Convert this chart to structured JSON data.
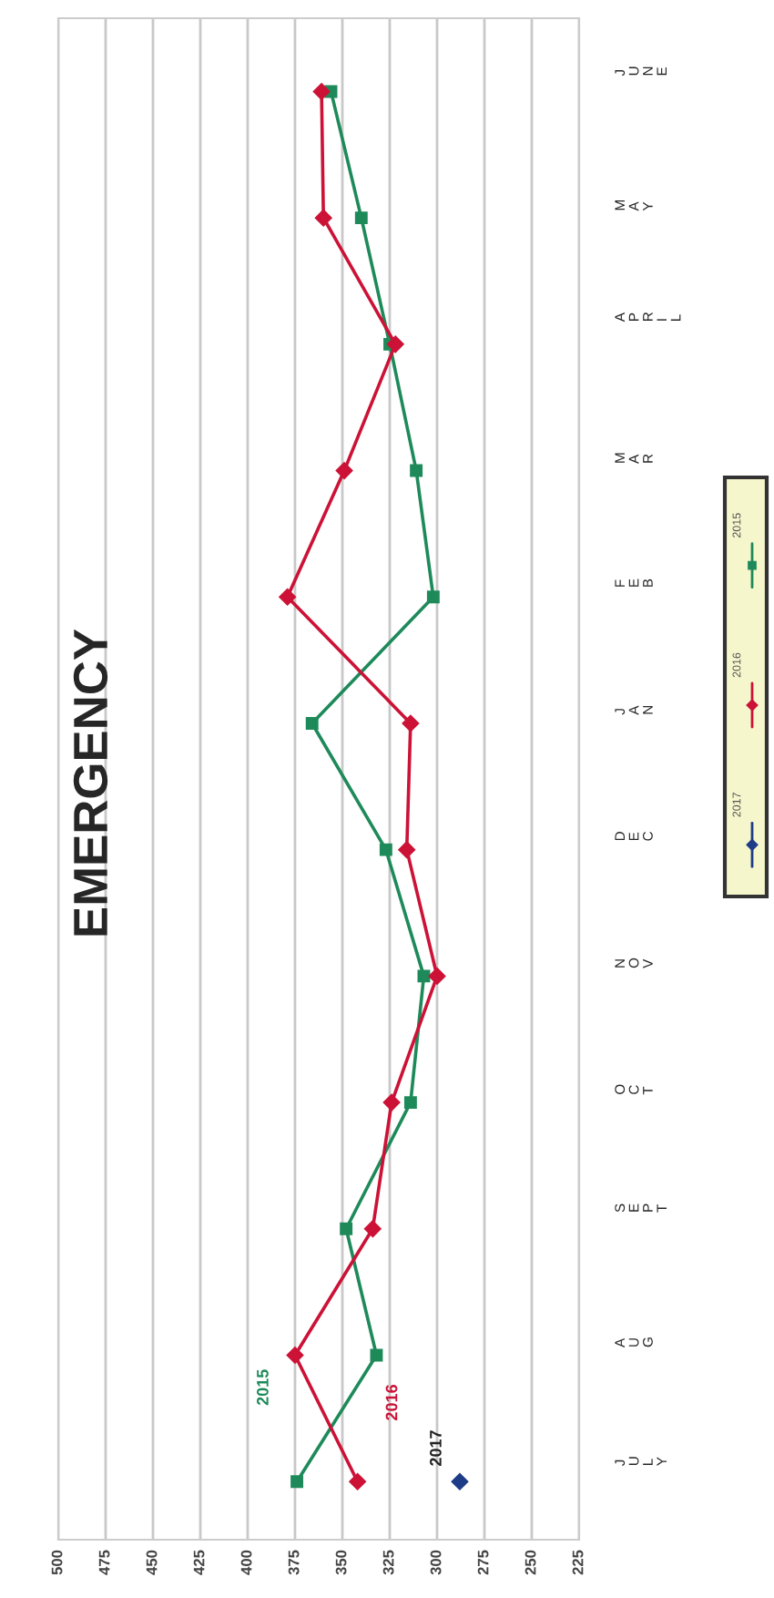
{
  "chart_data": {
    "type": "line",
    "title": "EMERGENCY",
    "orientation": "horizontal",
    "categories": [
      "JUNE",
      "MAY",
      "APRIL",
      "MAR",
      "FEB",
      "JAN",
      "DEC",
      "NOV",
      "OCT",
      "SEPT",
      "AUG",
      "JULY"
    ],
    "series": [
      {
        "name": "2015",
        "color": "#1e8a5a",
        "marker": "square",
        "values": [
          356,
          340,
          325,
          311,
          302,
          366,
          327,
          307,
          314,
          348,
          332,
          374
        ]
      },
      {
        "name": "2016",
        "color": "#cc1236",
        "marker": "diamond",
        "values": [
          361,
          360,
          322,
          349,
          379,
          314,
          316,
          300,
          324,
          334,
          375,
          342
        ]
      },
      {
        "name": "2017",
        "color": "#1f3c88",
        "marker": "diamond",
        "values": [
          null,
          null,
          null,
          null,
          null,
          null,
          null,
          null,
          null,
          null,
          null,
          288
        ]
      }
    ],
    "xlim": [
      500,
      225
    ],
    "xticks": [
      500,
      475,
      450,
      425,
      400,
      375,
      350,
      325,
      300,
      275,
      250,
      225
    ],
    "grid": true,
    "legend": "bottom"
  }
}
